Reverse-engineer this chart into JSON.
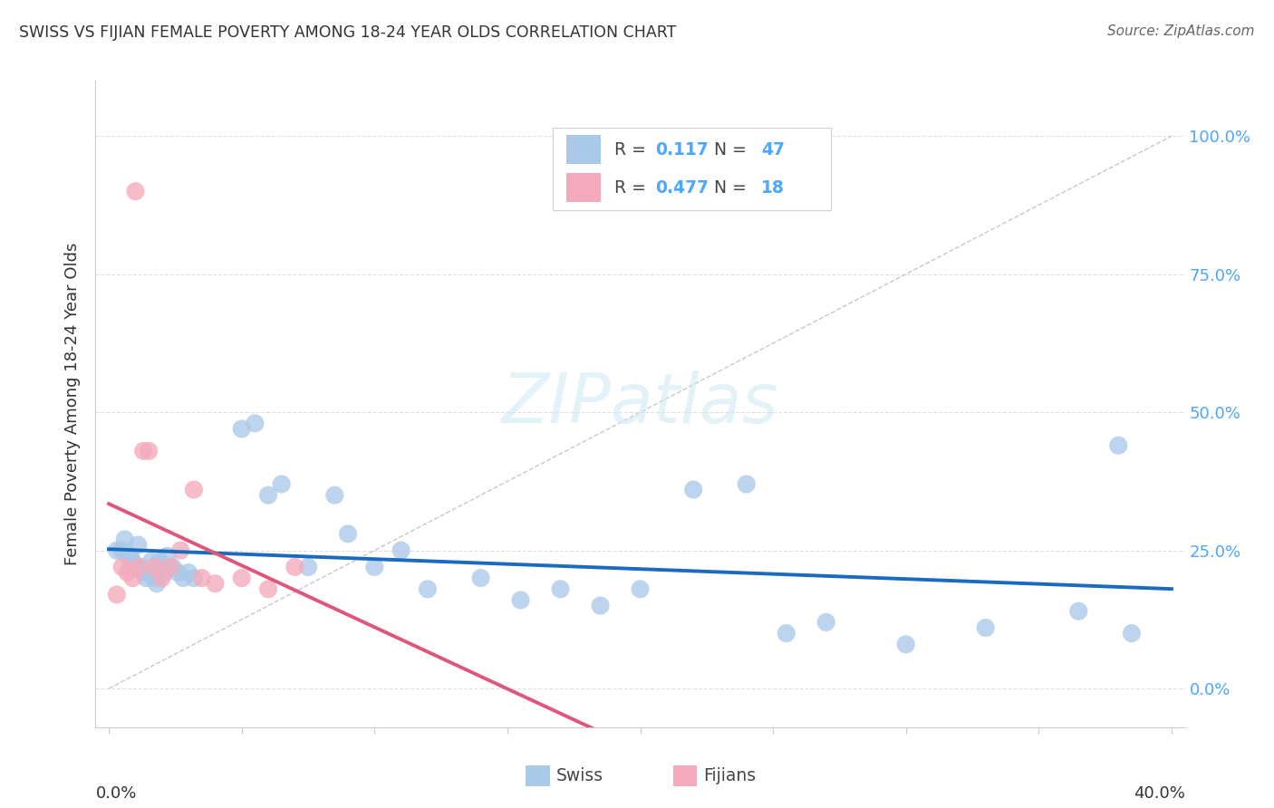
{
  "title": "SWISS VS FIJIAN FEMALE POVERTY AMONG 18-24 YEAR OLDS CORRELATION CHART",
  "source": "Source: ZipAtlas.com",
  "ylabel": "Female Poverty Among 18-24 Year Olds",
  "xlim": [
    -0.005,
    0.405
  ],
  "ylim": [
    -0.07,
    1.1
  ],
  "swiss_color": "#aac8e8",
  "fijian_color": "#f4aabb",
  "swiss_line_color": "#1a6bbf",
  "fijian_line_color": "#e0557a",
  "diagonal_color": "#c8c8c8",
  "r_swiss": "0.117",
  "n_swiss": "47",
  "r_fijian": "0.477",
  "n_fijian": "18",
  "legend_r_color": "#4da6ff",
  "legend_n_color": "#4da6ff",
  "watermark_color": "#cce8f5",
  "background_color": "#ffffff",
  "title_color": "#333333",
  "source_color": "#666666",
  "axis_label_color": "#333333",
  "right_tick_color": "#4da6ff",
  "yticks": [
    0.0,
    0.25,
    0.5,
    0.75,
    1.0
  ],
  "ytick_labels_right": [
    "0.0%",
    "25.0%",
    "50.0%",
    "75.0%",
    "100.0%"
  ],
  "swiss_x": [
    0.003,
    0.005,
    0.006,
    0.007,
    0.008,
    0.009,
    0.01,
    0.011,
    0.012,
    0.013,
    0.014,
    0.015,
    0.016,
    0.017,
    0.018,
    0.019,
    0.021,
    0.022,
    0.024,
    0.026,
    0.028,
    0.03,
    0.032,
    0.05,
    0.055,
    0.06,
    0.065,
    0.075,
    0.085,
    0.09,
    0.1,
    0.11,
    0.12,
    0.14,
    0.155,
    0.17,
    0.185,
    0.2,
    0.22,
    0.24,
    0.255,
    0.27,
    0.3,
    0.33,
    0.365,
    0.385,
    0.38
  ],
  "swiss_y": [
    0.25,
    0.25,
    0.27,
    0.24,
    0.24,
    0.23,
    0.22,
    0.26,
    0.22,
    0.21,
    0.2,
    0.21,
    0.23,
    0.2,
    0.19,
    0.23,
    0.21,
    0.24,
    0.22,
    0.21,
    0.2,
    0.21,
    0.2,
    0.47,
    0.48,
    0.35,
    0.37,
    0.22,
    0.35,
    0.28,
    0.22,
    0.25,
    0.18,
    0.2,
    0.16,
    0.18,
    0.15,
    0.18,
    0.36,
    0.37,
    0.1,
    0.12,
    0.08,
    0.11,
    0.14,
    0.1,
    0.44
  ],
  "fijian_x": [
    0.003,
    0.005,
    0.007,
    0.009,
    0.011,
    0.013,
    0.015,
    0.017,
    0.02,
    0.023,
    0.027,
    0.032,
    0.04,
    0.05,
    0.06,
    0.07,
    0.01,
    0.035
  ],
  "fijian_y": [
    0.17,
    0.22,
    0.21,
    0.2,
    0.22,
    0.43,
    0.43,
    0.22,
    0.2,
    0.22,
    0.25,
    0.36,
    0.19,
    0.2,
    0.18,
    0.22,
    0.9,
    0.2
  ],
  "watermark": "ZIPatlas"
}
